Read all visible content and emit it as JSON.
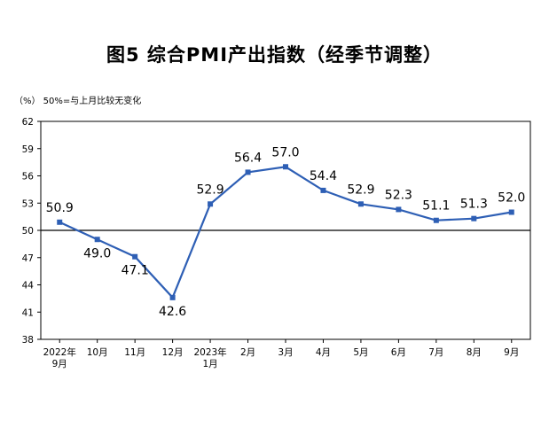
{
  "title": "图5  综合PMI产出指数（经季节调整）",
  "unit_note": "（%）  50%=与上月比较无变化",
  "chart_data": {
    "type": "line",
    "title": "图5  综合PMI产出指数（经季节调整）",
    "ylabel": "（%）",
    "note": "50%=与上月比较无变化",
    "ylim": [
      38,
      62
    ],
    "yticks": [
      38,
      41,
      44,
      47,
      50,
      53,
      56,
      59,
      62
    ],
    "reference_line": 50,
    "grid": false,
    "legend": "none",
    "categories": [
      [
        "2022年",
        "9月"
      ],
      [
        "10月"
      ],
      [
        "11月"
      ],
      [
        "12月"
      ],
      [
        "2023年",
        "1月"
      ],
      [
        "2月"
      ],
      [
        "3月"
      ],
      [
        "4月"
      ],
      [
        "5月"
      ],
      [
        "6月"
      ],
      [
        "7月"
      ],
      [
        "8月"
      ],
      [
        "9月"
      ]
    ],
    "series": [
      {
        "values": [
          50.9,
          49.0,
          47.1,
          42.6,
          52.9,
          56.4,
          57.0,
          54.4,
          52.9,
          52.3,
          51.1,
          51.3,
          52.0
        ],
        "labels": [
          "50.9",
          "49.0",
          "47.1",
          "42.6",
          "52.9",
          "56.4",
          "57.0",
          "54.4",
          "52.9",
          "52.3",
          "51.1",
          "51.3",
          "52.0"
        ],
        "color": "#2e5fb5"
      }
    ]
  }
}
